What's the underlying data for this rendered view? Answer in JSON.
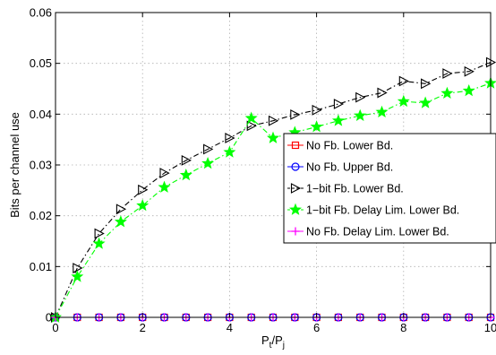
{
  "chart_data": {
    "type": "line",
    "xlabel": "P_t/P_j",
    "ylabel": "Bits per channel use",
    "xlim": [
      0,
      10
    ],
    "ylim": [
      0,
      0.06
    ],
    "x_ticks": [
      0,
      2,
      4,
      6,
      8,
      10
    ],
    "y_ticks": [
      0,
      0.01,
      0.02,
      0.03,
      0.04,
      0.05,
      0.06
    ],
    "x_tick_labels": [
      "0",
      "2",
      "4",
      "6",
      "8",
      "10"
    ],
    "y_tick_labels": [
      "0",
      "0.01",
      "0.02",
      "0.03",
      "0.04",
      "0.05",
      "0.06"
    ],
    "grid": true,
    "legend_position": "center-right",
    "x": [
      0,
      0.5,
      1,
      1.5,
      2,
      2.5,
      3,
      3.5,
      4,
      4.5,
      5,
      5.5,
      6,
      6.5,
      7,
      7.5,
      8,
      8.5,
      9,
      9.5,
      10
    ],
    "series": [
      {
        "name": "No Fb. Lower Bd.",
        "color": "#ff0000",
        "marker": "square",
        "line_style": "solid",
        "values": [
          0,
          0,
          0,
          0,
          0,
          0,
          0,
          0,
          0,
          0,
          0,
          0,
          0,
          0,
          0,
          0,
          0,
          0,
          0,
          0,
          0
        ]
      },
      {
        "name": "No Fb. Upper Bd.",
        "color": "#0000ff",
        "marker": "circle",
        "line_style": "solid",
        "values": [
          0,
          0,
          0,
          0,
          0,
          0,
          0,
          0,
          0,
          0,
          0,
          0,
          0,
          0,
          0,
          0,
          0,
          0,
          0,
          0,
          0
        ]
      },
      {
        "name": "1−bit Fb. Lower Bd.",
        "color": "#000000",
        "marker": "triangle-right",
        "line_style": "dashdot",
        "values": [
          0,
          0.0097,
          0.0165,
          0.0213,
          0.0251,
          0.0284,
          0.0309,
          0.0331,
          0.0353,
          0.0377,
          0.0387,
          0.0399,
          0.0408,
          0.042,
          0.0433,
          0.0442,
          0.0465,
          0.046,
          0.048,
          0.0484,
          0.0502
        ]
      },
      {
        "name": "1−bit Fb. Delay Lim. Lower Bd.",
        "color": "#00ff00",
        "marker": "star",
        "line_style": "dashdot",
        "values": [
          0,
          0.008,
          0.0145,
          0.0188,
          0.022,
          0.0256,
          0.028,
          0.0303,
          0.0325,
          0.0392,
          0.0353,
          0.0364,
          0.0375,
          0.0387,
          0.0397,
          0.0404,
          0.0425,
          0.0422,
          0.0441,
          0.0446,
          0.0461
        ]
      },
      {
        "name": "No Fb. Delay Lim. Lower Bd.",
        "color": "#ff00ff",
        "marker": "plus",
        "line_style": "solid",
        "values": [
          0,
          0,
          0,
          0,
          0,
          0,
          0,
          0,
          0,
          0,
          0,
          0,
          0,
          0,
          0,
          0,
          0,
          0,
          0,
          0,
          0
        ]
      }
    ]
  }
}
